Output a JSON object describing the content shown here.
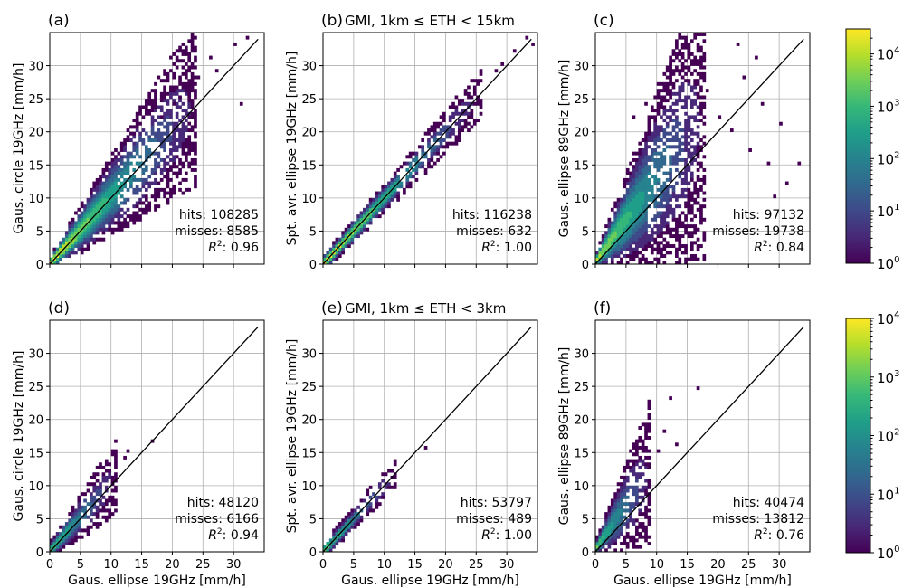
{
  "colors": {
    "viridis": [
      "#440154",
      "#482878",
      "#3e4989",
      "#31688e",
      "#26828e",
      "#1f9e89",
      "#35b779",
      "#6ece58",
      "#b5de2b",
      "#fde725"
    ],
    "grid": "#b0b0b0",
    "one_to_one_line": "#000000"
  },
  "chart_data": [
    {
      "panel": "a",
      "label": "(a)",
      "title": "",
      "type": "heatmap",
      "ylabel": "Gaus. circle 19GHz [mm/h]",
      "xlabel": "",
      "xlim": [
        0,
        35
      ],
      "ylim": [
        0,
        35
      ],
      "xticks": [
        0,
        5,
        10,
        15,
        20,
        25,
        30
      ],
      "yticks": [
        0,
        5,
        10,
        15,
        20,
        25,
        30
      ],
      "stats": {
        "hits": "hits: 108285",
        "misses": "misses: 8585",
        "r2_label": "R",
        "r2_value": ": 0.96"
      },
      "one_to_one_line": [
        [
          0,
          0
        ],
        [
          34,
          34
        ]
      ],
      "density": {
        "spread": 0.35,
        "bias": 0.03,
        "max_x": 24,
        "density_scale": 1.0
      },
      "outliers": [
        [
          18,
          22
        ],
        [
          20,
          24
        ],
        [
          21,
          25
        ],
        [
          23,
          27
        ],
        [
          24,
          28
        ],
        [
          26,
          31
        ],
        [
          27,
          29
        ],
        [
          30,
          33
        ],
        [
          31,
          24
        ],
        [
          32,
          34
        ]
      ]
    },
    {
      "panel": "b",
      "label": "(b)",
      "title": "GMI, 1km  ≤  ETH < 15km",
      "type": "heatmap",
      "ylabel": "Spt. avr. ellipse 19GHz [mm/h]",
      "xlabel": "",
      "xlim": [
        0,
        35
      ],
      "ylim": [
        0,
        35
      ],
      "xticks": [
        0,
        5,
        10,
        15,
        20,
        25,
        30
      ],
      "yticks": [
        0,
        5,
        10,
        15,
        20,
        25,
        30
      ],
      "stats": {
        "hits": "hits: 116238",
        "misses": "misses: 632",
        "r2_label": "R",
        "r2_value": ": 1.00"
      },
      "one_to_one_line": [
        [
          0,
          0
        ],
        [
          34,
          34
        ]
      ],
      "density": {
        "spread": 0.07,
        "bias": 0.0,
        "max_x": 26,
        "density_scale": 1.05
      },
      "outliers": [
        [
          28,
          29
        ],
        [
          29,
          30
        ],
        [
          31,
          32
        ],
        [
          33,
          34
        ],
        [
          34,
          33
        ]
      ]
    },
    {
      "panel": "c",
      "label": "(c)",
      "title": "",
      "type": "heatmap",
      "ylabel": "Gaus. ellipse 89GHz [mm/h]",
      "xlabel": "",
      "xlim": [
        0,
        35
      ],
      "ylim": [
        0,
        35
      ],
      "xticks": [
        0,
        5,
        10,
        15,
        20,
        25,
        30
      ],
      "yticks": [
        0,
        5,
        10,
        15,
        20,
        25,
        30
      ],
      "stats": {
        "hits": "hits: 97132",
        "misses": "misses: 19738",
        "r2_label": "R",
        "r2_value": ": 0.84"
      },
      "one_to_one_line": [
        [
          0,
          0
        ],
        [
          34,
          34
        ]
      ],
      "density": {
        "spread": 0.85,
        "bias": 0.25,
        "max_x": 18,
        "density_scale": 0.9
      },
      "outliers": [
        [
          6,
          22
        ],
        [
          8,
          24
        ],
        [
          10,
          27
        ],
        [
          12,
          30
        ],
        [
          13,
          33
        ],
        [
          15,
          29
        ],
        [
          16,
          34
        ],
        [
          18,
          26
        ],
        [
          20,
          22
        ],
        [
          22,
          20
        ],
        [
          24,
          28
        ],
        [
          25,
          17
        ],
        [
          26,
          31
        ],
        [
          27,
          24
        ],
        [
          28,
          15
        ],
        [
          30,
          21
        ],
        [
          31,
          12
        ],
        [
          33,
          15
        ],
        [
          29,
          10
        ],
        [
          23,
          33
        ]
      ]
    },
    {
      "panel": "d",
      "label": "(d)",
      "title": "",
      "type": "heatmap",
      "ylabel": "Gaus. circle 19GHz [mm/h]",
      "xlabel": "Gaus. ellipse 19GHz [mm/h]",
      "xlim": [
        0,
        35
      ],
      "ylim": [
        0,
        35
      ],
      "xticks": [
        0,
        5,
        10,
        15,
        20,
        25,
        30
      ],
      "yticks": [
        0,
        5,
        10,
        15,
        20,
        25,
        30
      ],
      "stats": {
        "hits": "hits: 48120",
        "misses": "misses: 6166",
        "r2_label": "R",
        "r2_value": ": 0.94"
      },
      "one_to_one_line": [
        [
          0,
          0
        ],
        [
          34,
          34
        ]
      ],
      "density": {
        "spread": 0.3,
        "bias": 0.05,
        "max_x": 11,
        "density_scale": 0.75
      },
      "outliers": [
        [
          12,
          14
        ],
        [
          12.5,
          15
        ],
        [
          16.5,
          16.5
        ]
      ]
    },
    {
      "panel": "e",
      "label": "(e)",
      "title": "GMI, 1km  ≤  ETH < 3km",
      "type": "heatmap",
      "ylabel": "Spt. avr. ellipse 19GHz [mm/h]",
      "xlabel": "Gaus. ellipse 19GHz [mm/h]",
      "xlim": [
        0,
        35
      ],
      "ylim": [
        0,
        35
      ],
      "xticks": [
        0,
        5,
        10,
        15,
        20,
        25,
        30
      ],
      "yticks": [
        0,
        5,
        10,
        15,
        20,
        25,
        30
      ],
      "stats": {
        "hits": "hits: 53797",
        "misses": "misses: 489",
        "r2_label": "R",
        "r2_value": ": 1.00"
      },
      "one_to_one_line": [
        [
          0,
          0
        ],
        [
          34,
          34
        ]
      ],
      "density": {
        "spread": 0.07,
        "bias": 0.0,
        "max_x": 12,
        "density_scale": 0.8
      },
      "outliers": [
        [
          16.5,
          15.5
        ]
      ]
    },
    {
      "panel": "f",
      "label": "(f)",
      "title": "",
      "type": "heatmap",
      "ylabel": "Gaus. ellipse 89GHz [mm/h]",
      "xlabel": "Gaus. ellipse 19GHz [mm/h]",
      "xlim": [
        0,
        35
      ],
      "ylim": [
        0,
        35
      ],
      "xticks": [
        0,
        5,
        10,
        15,
        20,
        25,
        30
      ],
      "yticks": [
        0,
        5,
        10,
        15,
        20,
        25,
        30
      ],
      "stats": {
        "hits": "hits: 40474",
        "misses": "misses: 13812",
        "r2_label": "R",
        "r2_value": ": 0.76"
      },
      "one_to_one_line": [
        [
          0,
          0
        ],
        [
          34,
          34
        ]
      ],
      "density": {
        "spread": 0.8,
        "bias": 0.3,
        "max_x": 9,
        "density_scale": 0.75
      },
      "outliers": [
        [
          10,
          15
        ],
        [
          12,
          23
        ],
        [
          16.5,
          24.5
        ],
        [
          11,
          18
        ],
        [
          13,
          16
        ]
      ]
    }
  ],
  "colorbars": [
    {
      "rows": "top",
      "scale": "log",
      "range": [
        1,
        30000
      ],
      "ticks": [
        {
          "value": 1,
          "base": "10",
          "exp": "0"
        },
        {
          "value": 10,
          "base": "10",
          "exp": "1"
        },
        {
          "value": 100,
          "base": "10",
          "exp": "2"
        },
        {
          "value": 1000,
          "base": "10",
          "exp": "3"
        },
        {
          "value": 10000,
          "base": "10",
          "exp": "4"
        }
      ]
    },
    {
      "rows": "bottom",
      "scale": "log",
      "range": [
        1,
        10000
      ],
      "ticks": [
        {
          "value": 1,
          "base": "10",
          "exp": "0"
        },
        {
          "value": 10,
          "base": "10",
          "exp": "1"
        },
        {
          "value": 100,
          "base": "10",
          "exp": "2"
        },
        {
          "value": 1000,
          "base": "10",
          "exp": "3"
        },
        {
          "value": 10000,
          "base": "10",
          "exp": "4"
        }
      ]
    }
  ]
}
